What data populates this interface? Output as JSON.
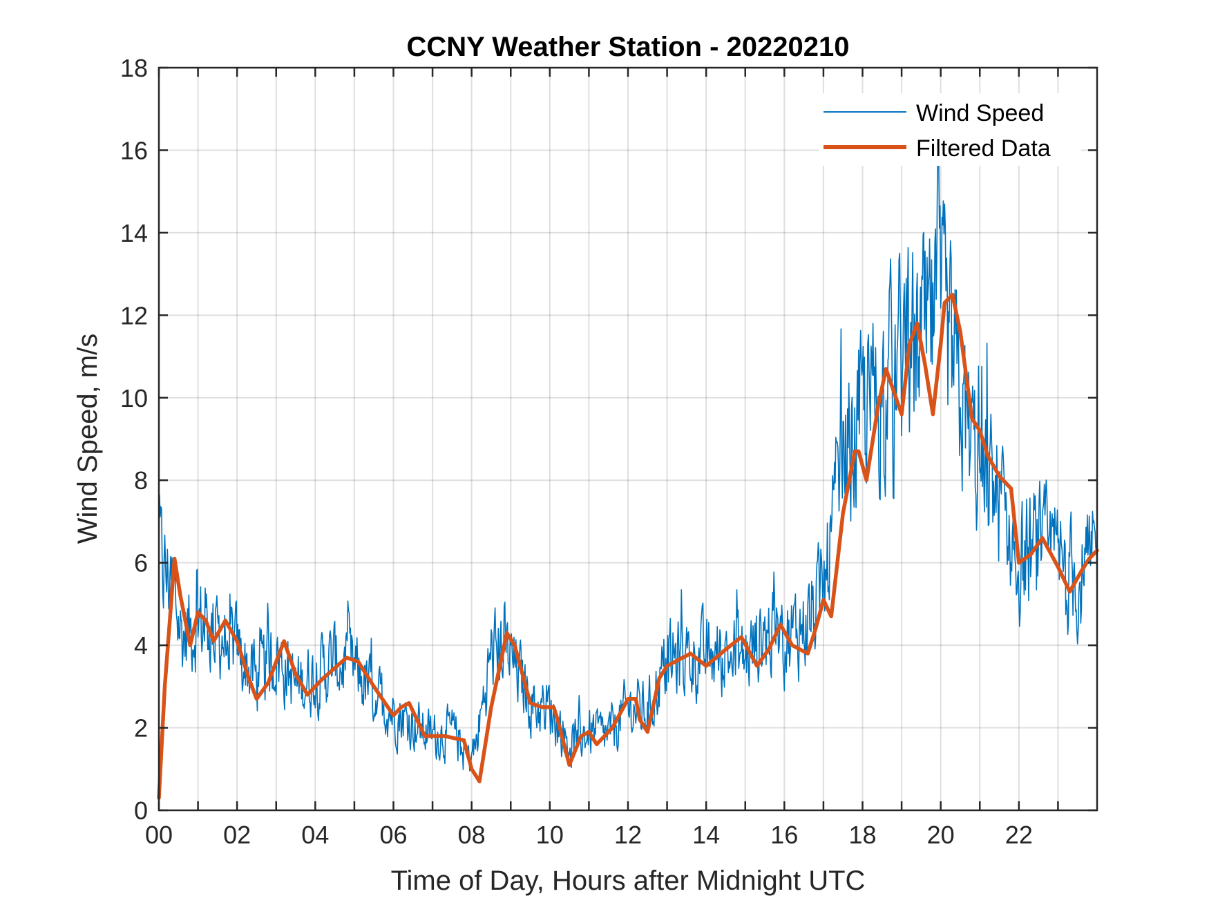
{
  "chart_data": {
    "type": "line",
    "title": "CCNY Weather Station - 20220210",
    "xlabel": "Time of Day, Hours after Midnight UTC",
    "ylabel": "Wind Speed, m/s",
    "xlim": [
      0,
      24
    ],
    "ylim": [
      0,
      18
    ],
    "grid": true,
    "legend_position": "top-right",
    "x_ticks": [
      0,
      2,
      4,
      6,
      8,
      10,
      12,
      14,
      16,
      18,
      20,
      22
    ],
    "x_tick_labels": [
      "00",
      "02",
      "04",
      "06",
      "08",
      "10",
      "12",
      "14",
      "16",
      "18",
      "20",
      "22"
    ],
    "x_minor_grid": [
      1,
      3,
      5,
      7,
      9,
      11,
      13,
      15,
      17,
      19,
      21,
      23
    ],
    "y_ticks": [
      0,
      2,
      4,
      6,
      8,
      10,
      12,
      14,
      16,
      18
    ],
    "y_tick_labels": [
      "0",
      "2",
      "4",
      "6",
      "8",
      "10",
      "12",
      "14",
      "16",
      "18"
    ],
    "series": [
      {
        "name": "Wind Speed",
        "color": "#0072BD",
        "style": "noisy",
        "noise_amplitude_rule": "proportional to level",
        "x": [
          0.0,
          0.3,
          0.6,
          1.0,
          1.5,
          2.0,
          2.5,
          3.0,
          3.5,
          4.0,
          4.5,
          5.0,
          5.5,
          6.0,
          6.5,
          7.0,
          7.5,
          7.9,
          8.1,
          8.5,
          8.8,
          9.2,
          9.6,
          10.0,
          10.5,
          11.0,
          11.5,
          12.0,
          12.5,
          13.0,
          13.5,
          14.0,
          14.5,
          15.0,
          15.5,
          16.0,
          16.5,
          17.0,
          17.5,
          18.0,
          18.5,
          19.0,
          19.5,
          20.0,
          20.5,
          21.0,
          21.5,
          22.0,
          22.5,
          23.0,
          23.5,
          24.0
        ],
        "y": [
          6.0,
          5.5,
          4.2,
          4.6,
          4.3,
          3.9,
          3.1,
          3.8,
          3.0,
          3.3,
          3.6,
          3.4,
          2.8,
          2.4,
          2.1,
          1.8,
          1.9,
          1.2,
          1.5,
          3.8,
          4.0,
          3.3,
          2.5,
          2.5,
          1.6,
          1.9,
          1.8,
          2.5,
          2.4,
          3.6,
          3.7,
          3.7,
          3.8,
          3.7,
          4.3,
          4.1,
          4.5,
          5.2,
          8.5,
          9.5,
          10.2,
          11.0,
          11.2,
          12.0,
          9.8,
          8.2,
          7.6,
          6.0,
          6.3,
          5.9,
          5.6,
          6.0
        ]
      },
      {
        "name": "Filtered Data",
        "color": "#D95319",
        "x": [
          0.0,
          0.15,
          0.4,
          0.55,
          0.8,
          1.0,
          1.2,
          1.4,
          1.7,
          2.0,
          2.3,
          2.5,
          2.8,
          3.2,
          3.5,
          3.8,
          4.2,
          4.8,
          5.1,
          5.5,
          6.0,
          6.2,
          6.4,
          6.8,
          7.3,
          7.8,
          8.0,
          8.2,
          8.5,
          8.9,
          9.1,
          9.5,
          9.8,
          10.1,
          10.2,
          10.5,
          10.8,
          11.0,
          11.2,
          11.6,
          12.0,
          12.2,
          12.3,
          12.5,
          12.8,
          13.0,
          13.2,
          13.6,
          14.0,
          14.5,
          14.9,
          15.3,
          15.6,
          15.9,
          16.2,
          16.6,
          16.8,
          17.0,
          17.2,
          17.5,
          17.8,
          17.9,
          18.1,
          18.4,
          18.6,
          19.0,
          19.2,
          19.4,
          19.6,
          19.8,
          20.0,
          20.1,
          20.3,
          20.5,
          20.8,
          21.0,
          21.2,
          21.5,
          21.8,
          22.0,
          22.3,
          22.6,
          23.0,
          23.3,
          23.6,
          23.8,
          24.0
        ],
        "y": [
          0.3,
          3.0,
          6.1,
          5.2,
          4.0,
          4.8,
          4.6,
          4.1,
          4.6,
          4.1,
          3.2,
          2.7,
          3.1,
          4.1,
          3.3,
          2.8,
          3.2,
          3.7,
          3.6,
          3.0,
          2.3,
          2.5,
          2.6,
          1.8,
          1.8,
          1.7,
          1.0,
          0.7,
          2.5,
          4.3,
          4.0,
          2.6,
          2.5,
          2.5,
          2.2,
          1.1,
          1.8,
          1.9,
          1.6,
          2.0,
          2.7,
          2.7,
          2.2,
          1.9,
          3.2,
          3.5,
          3.6,
          3.8,
          3.5,
          3.9,
          4.2,
          3.5,
          3.9,
          4.5,
          4.0,
          3.8,
          4.4,
          5.1,
          4.7,
          7.2,
          8.7,
          8.7,
          8.0,
          9.8,
          10.7,
          9.6,
          11.3,
          11.8,
          10.8,
          9.6,
          11.3,
          12.3,
          12.5,
          11.6,
          9.5,
          9.2,
          8.6,
          8.1,
          7.8,
          6.0,
          6.2,
          6.6,
          5.9,
          5.3,
          5.8,
          6.1,
          6.3
        ]
      }
    ]
  }
}
